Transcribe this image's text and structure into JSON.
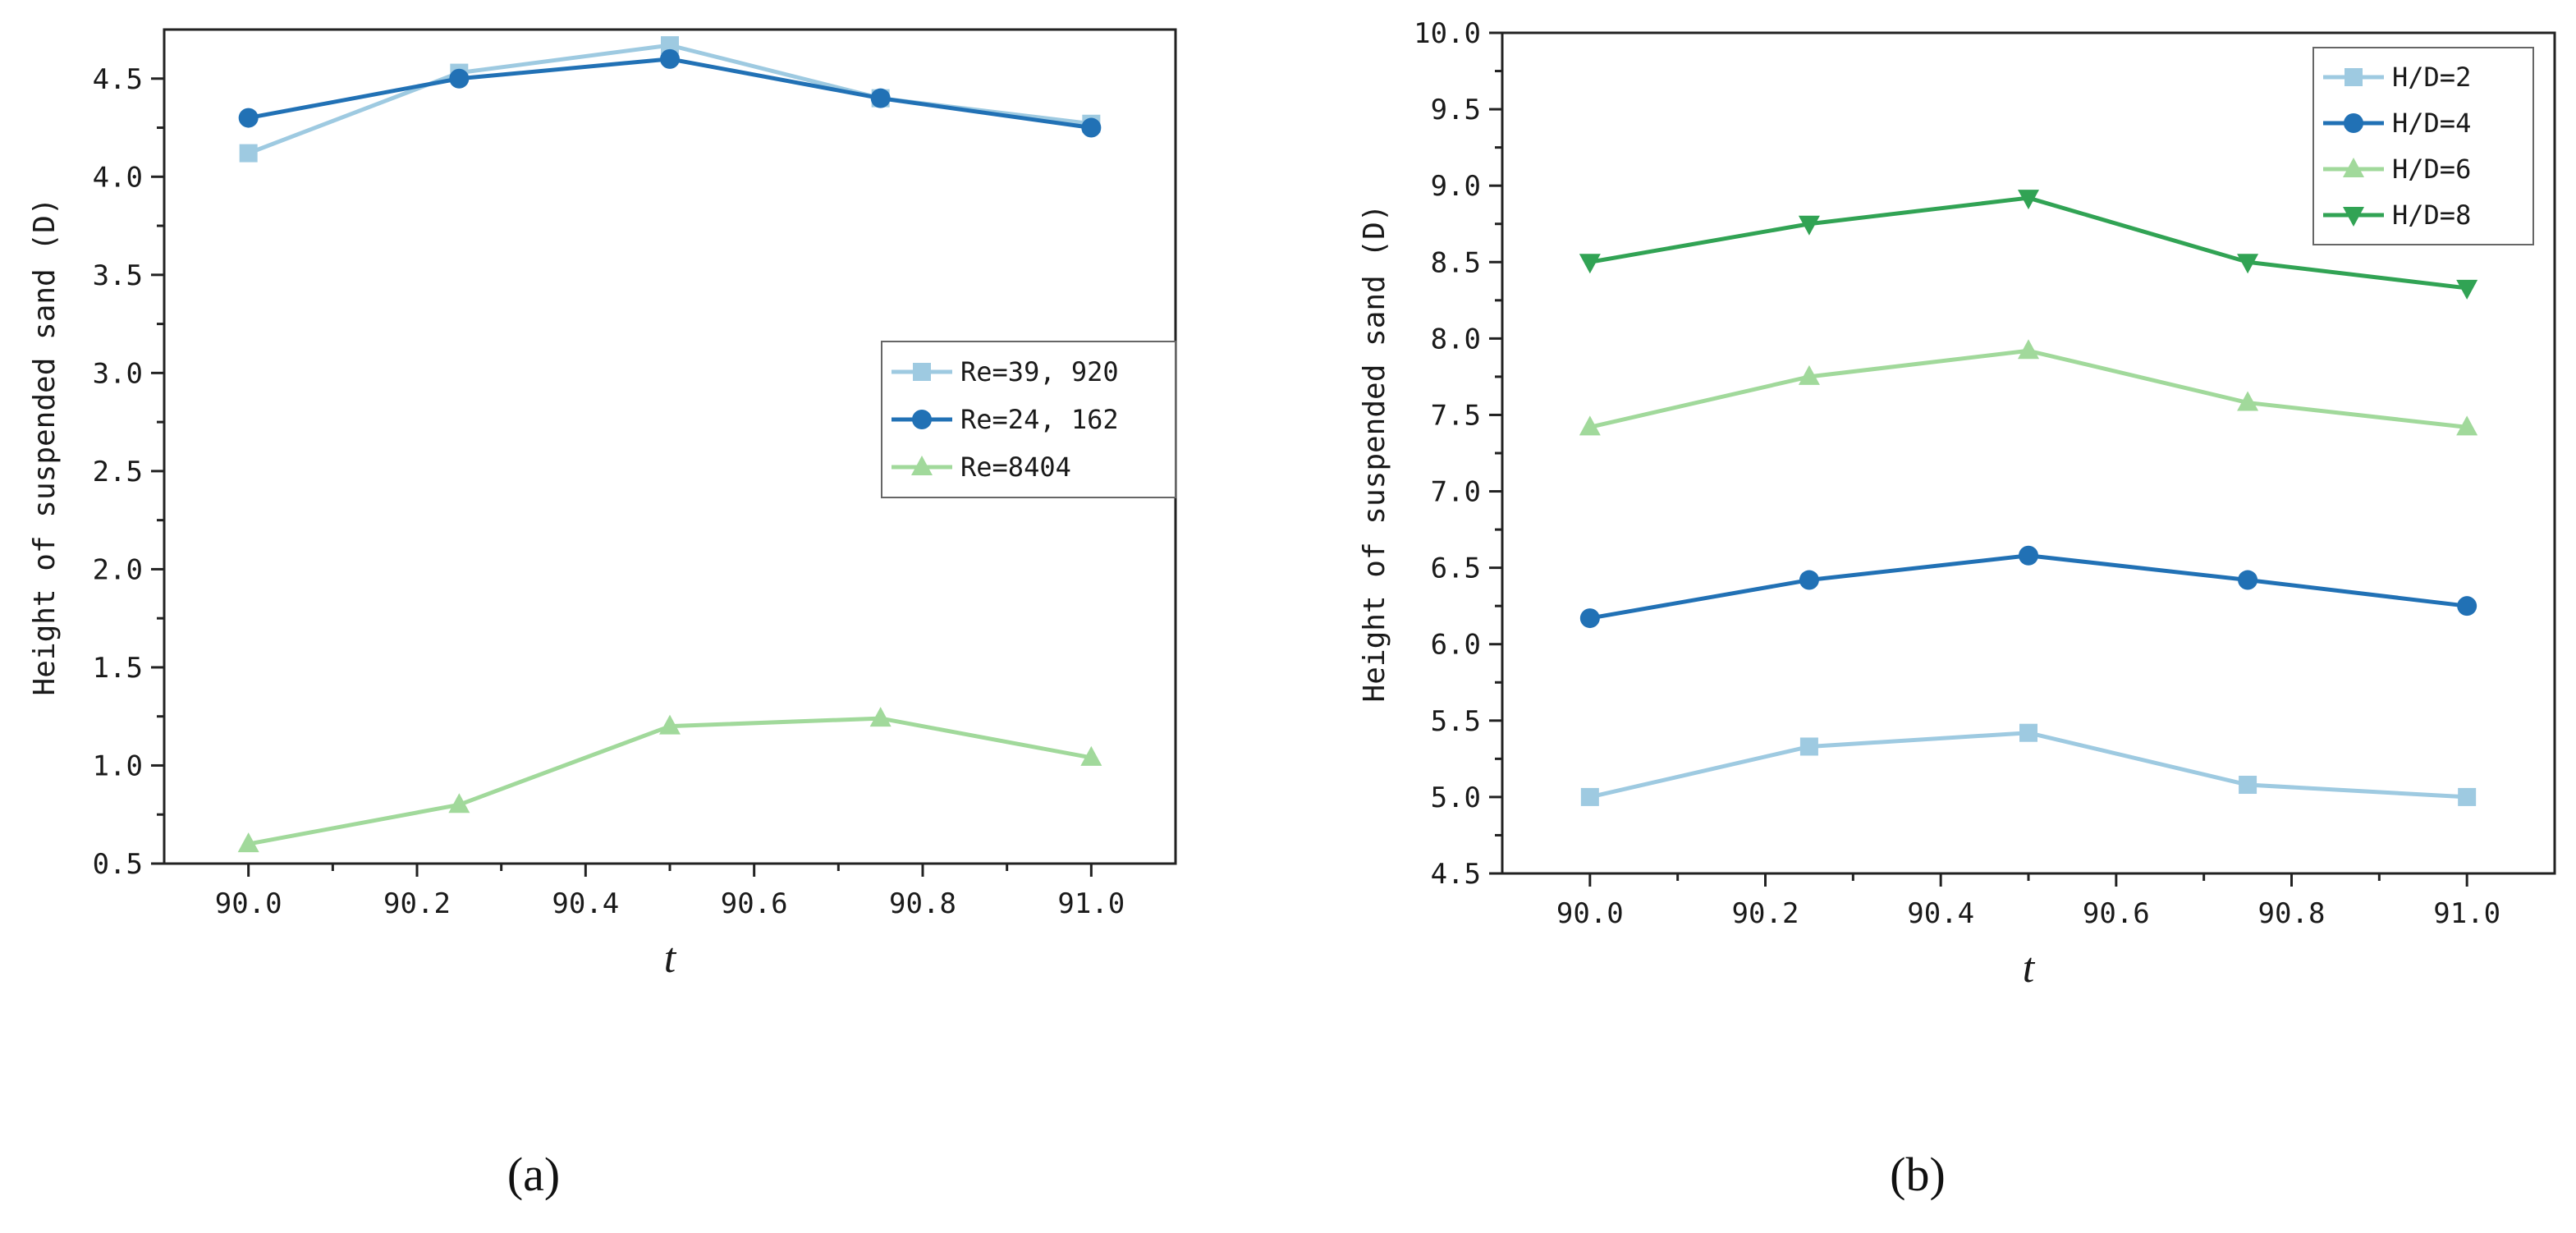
{
  "figure_labels": {
    "a": "(a)",
    "b": "(b)"
  },
  "chart_data": [
    {
      "type": "line",
      "panel": "a",
      "title": "",
      "xlabel": "t",
      "ylabel": "Height of suspended sand (D)",
      "xlim": [
        89.9,
        91.1
      ],
      "ylim": [
        0.5,
        4.75
      ],
      "xticks": [
        90.0,
        90.2,
        90.4,
        90.6,
        90.8,
        91.0
      ],
      "xtick_labels": [
        "90.0",
        "90.2",
        "90.4",
        "90.6",
        "90.8",
        "91.0"
      ],
      "yticks": [
        0.5,
        1.0,
        1.5,
        2.0,
        2.5,
        3.0,
        3.5,
        4.0,
        4.5
      ],
      "ytick_labels": [
        "0.5",
        "1.0",
        "1.5",
        "2.0",
        "2.5",
        "3.0",
        "3.5",
        "4.0",
        "4.5"
      ],
      "legend_position": "center-right",
      "x": [
        90.0,
        90.25,
        90.5,
        90.75,
        91.0
      ],
      "series": [
        {
          "name": "Re=39, 920",
          "values": [
            4.12,
            4.53,
            4.67,
            4.4,
            4.27
          ],
          "color": "#9ecae1",
          "marker": "square"
        },
        {
          "name": "Re=24, 162",
          "values": [
            4.3,
            4.5,
            4.6,
            4.4,
            4.25
          ],
          "color": "#2171b5",
          "marker": "circle"
        },
        {
          "name": "Re=8404",
          "values": [
            0.6,
            0.8,
            1.2,
            1.24,
            1.04
          ],
          "color": "#a1d99b",
          "marker": "triangle-up"
        }
      ]
    },
    {
      "type": "line",
      "panel": "b",
      "title": "",
      "xlabel": "t",
      "ylabel": "Height of suspended sand (D)",
      "xlim": [
        89.9,
        91.1
      ],
      "ylim": [
        4.5,
        10.0
      ],
      "xticks": [
        90.0,
        90.2,
        90.4,
        90.6,
        90.8,
        91.0
      ],
      "xtick_labels": [
        "90.0",
        "90.2",
        "90.4",
        "90.6",
        "90.8",
        "91.0"
      ],
      "yticks": [
        4.5,
        5.0,
        5.5,
        6.0,
        6.5,
        7.0,
        7.5,
        8.0,
        8.5,
        9.0,
        9.5,
        10.0
      ],
      "ytick_labels": [
        "4.5",
        "5.0",
        "5.5",
        "6.0",
        "6.5",
        "7.0",
        "7.5",
        "8.0",
        "8.5",
        "9.0",
        "9.5",
        "10.0"
      ],
      "legend_position": "top-right",
      "x": [
        90.0,
        90.25,
        90.5,
        90.75,
        91.0
      ],
      "series": [
        {
          "name": "H/D=2",
          "values": [
            5.0,
            5.33,
            5.42,
            5.08,
            5.0
          ],
          "color": "#9ecae1",
          "marker": "square"
        },
        {
          "name": "H/D=4",
          "values": [
            6.17,
            6.42,
            6.58,
            6.42,
            6.25
          ],
          "color": "#2171b5",
          "marker": "circle"
        },
        {
          "name": "H/D=6",
          "values": [
            7.42,
            7.75,
            7.92,
            7.58,
            7.42
          ],
          "color": "#a1d99b",
          "marker": "triangle-up"
        },
        {
          "name": "H/D=8",
          "values": [
            8.5,
            8.75,
            8.92,
            8.5,
            8.33
          ],
          "color": "#31a354",
          "marker": "triangle-down"
        }
      ]
    }
  ]
}
